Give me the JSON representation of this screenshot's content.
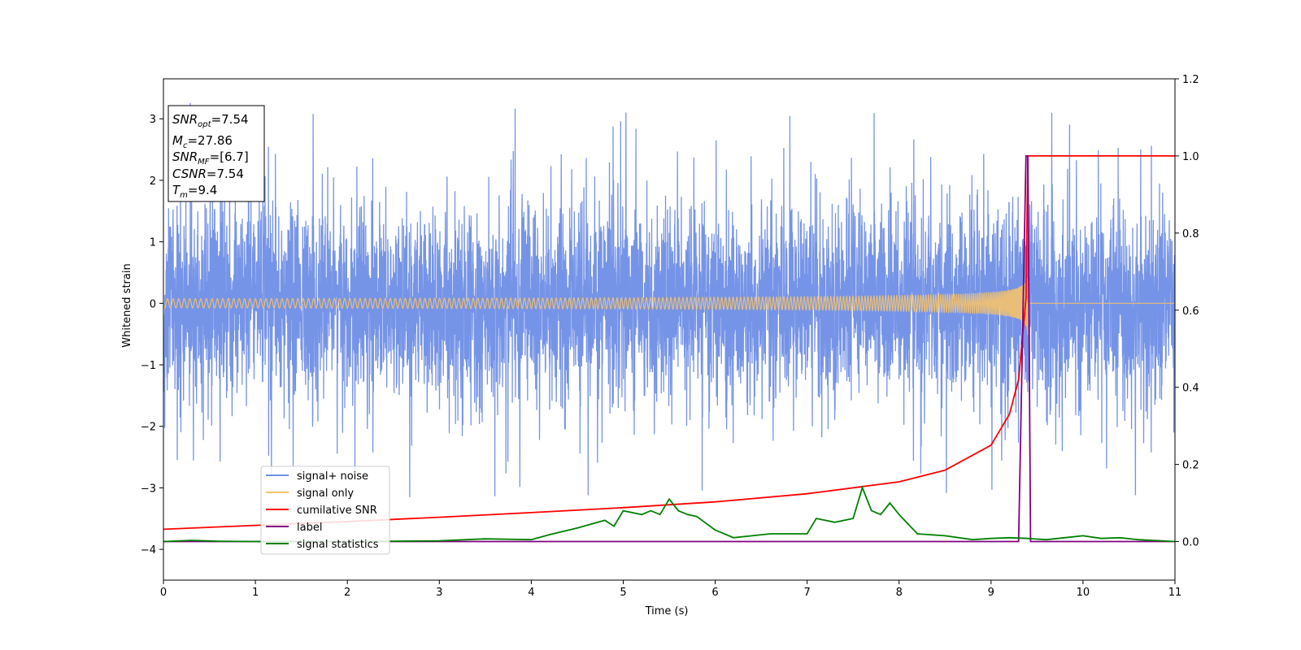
{
  "chart_data": {
    "type": "line",
    "xlabel": "Time (s)",
    "ylabel_left": "Whitened strain",
    "ylabel_right": "",
    "xlim": [
      0,
      11
    ],
    "ylim_left": [
      -4.5,
      3.65
    ],
    "ylim_right": [
      -0.1,
      1.2
    ],
    "x_ticks": [
      0,
      1,
      2,
      3,
      4,
      5,
      6,
      7,
      8,
      9,
      10,
      11
    ],
    "y_ticks_left": [
      -4,
      -3,
      -2,
      -1,
      0,
      1,
      2,
      3
    ],
    "y_ticks_right": [
      0.0,
      0.2,
      0.4,
      0.6,
      0.8,
      1.0,
      1.2
    ],
    "grid": false,
    "legend_position": "lower-left",
    "annotation": {
      "lines": [
        {
          "main": "SNR",
          "sub": "opt",
          "value": "=7.54"
        },
        {
          "main": "M",
          "sub": "c",
          "value": "=27.86"
        },
        {
          "main": "SNR",
          "sub": "MF",
          "value": "=[6.7]"
        },
        {
          "main": "CSNR",
          "sub": "",
          "value": "=7.54"
        },
        {
          "main": "T",
          "sub": "m",
          "value": "=9.4"
        }
      ]
    },
    "series": [
      {
        "name": "signal+ noise",
        "color": "#6f8ee6",
        "axis": "left",
        "kind": "noise",
        "sigma": 0.78,
        "spike_max": 3.3,
        "spike_min": -3.2
      },
      {
        "name": "signal only",
        "color": "#f5c26b",
        "axis": "left",
        "kind": "chirp",
        "merger_time": 9.4,
        "peak_amplitude": 0.65
      },
      {
        "name": "cumilative SNR",
        "color": "#ff0000",
        "axis": "right",
        "x": [
          0,
          1,
          2,
          3,
          4,
          5,
          6,
          7,
          8,
          8.5,
          9,
          9.2,
          9.3,
          9.38,
          9.4,
          11
        ],
        "y": [
          0.032,
          0.042,
          0.052,
          0.063,
          0.075,
          0.088,
          0.103,
          0.124,
          0.155,
          0.185,
          0.25,
          0.33,
          0.42,
          0.63,
          1.0,
          1.0
        ]
      },
      {
        "name": "label",
        "color": "#800080",
        "axis": "right",
        "x": [
          0,
          9.3,
          9.38,
          9.4,
          9.43,
          11
        ],
        "y": [
          0.0,
          0.0,
          1.0,
          1.0,
          0.0,
          0.0
        ]
      },
      {
        "name": "signal statistics",
        "color": "#008000",
        "axis": "right",
        "x": [
          0,
          0.3,
          0.6,
          1,
          2,
          3,
          3.5,
          4,
          4.2,
          4.5,
          4.8,
          4.9,
          5.0,
          5.2,
          5.3,
          5.4,
          5.5,
          5.6,
          5.7,
          5.8,
          6.0,
          6.2,
          6.4,
          6.6,
          6.8,
          7.0,
          7.1,
          7.3,
          7.5,
          7.6,
          7.7,
          7.8,
          7.9,
          8.0,
          8.2,
          8.5,
          8.8,
          9.0,
          9.2,
          9.4,
          9.6,
          9.8,
          10.0,
          10.2,
          10.4,
          10.6,
          11
        ],
        "y": [
          0.0,
          0.003,
          0.001,
          0.0,
          0.0,
          0.002,
          0.007,
          0.005,
          0.018,
          0.035,
          0.055,
          0.04,
          0.08,
          0.07,
          0.08,
          0.07,
          0.11,
          0.08,
          0.07,
          0.065,
          0.03,
          0.01,
          0.015,
          0.02,
          0.02,
          0.02,
          0.06,
          0.05,
          0.06,
          0.14,
          0.08,
          0.07,
          0.1,
          0.07,
          0.02,
          0.015,
          0.005,
          0.008,
          0.01,
          0.008,
          0.005,
          0.01,
          0.015,
          0.008,
          0.01,
          0.005,
          0.0
        ]
      }
    ]
  }
}
